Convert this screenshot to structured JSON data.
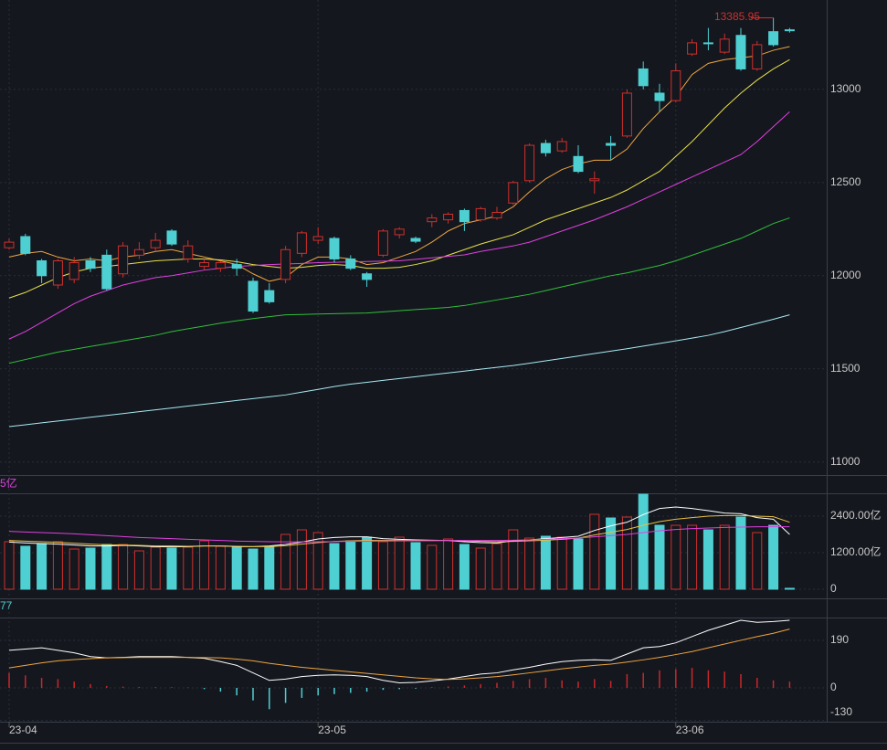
{
  "chart_data": [
    {
      "type": "candlestick",
      "categories": [
        "23-04",
        null,
        null,
        null,
        null,
        null,
        null,
        null,
        null,
        null,
        null,
        null,
        null,
        null,
        null,
        null,
        null,
        null,
        null,
        "23-05",
        null,
        null,
        null,
        null,
        null,
        null,
        null,
        null,
        null,
        null,
        null,
        null,
        null,
        null,
        null,
        null,
        null,
        null,
        null,
        null,
        null,
        "23-06",
        null,
        null,
        null,
        null,
        null,
        null,
        null
      ],
      "open": [
        12150,
        12210,
        12080,
        11950,
        11980,
        12080,
        12110,
        12010,
        12110,
        12150,
        12240,
        12090,
        12050,
        12040,
        12060,
        11970,
        11920,
        11980,
        12120,
        12190,
        12200,
        12090,
        12010,
        12110,
        12220,
        12200,
        12290,
        12300,
        12350,
        12300,
        12310,
        12390,
        12510,
        12710,
        12670,
        12640,
        12510,
        12710,
        12750,
        13110,
        12980,
        12940,
        13190,
        13250,
        13200,
        13290,
        13110,
        13310,
        13320
      ],
      "high": [
        12200,
        12225,
        12090,
        12090,
        12100,
        12100,
        12140,
        12180,
        12180,
        12230,
        12250,
        12190,
        12090,
        12080,
        12090,
        11990,
        11960,
        12160,
        12240,
        12260,
        12210,
        12110,
        12020,
        12250,
        12260,
        12210,
        12330,
        12340,
        12360,
        12370,
        12370,
        12510,
        12710,
        12730,
        12740,
        12700,
        12560,
        12750,
        13000,
        13150,
        13030,
        13140,
        13270,
        13330,
        13300,
        13330,
        13260,
        13385.95,
        13330
      ],
      "low": [
        12140,
        12110,
        11960,
        11930,
        11960,
        12020,
        11920,
        11990,
        12090,
        12130,
        12160,
        12070,
        12030,
        12020,
        12000,
        11800,
        11850,
        11960,
        12100,
        12170,
        12070,
        12030,
        11940,
        12100,
        12200,
        12175,
        12260,
        12280,
        12240,
        12290,
        12300,
        12380,
        12500,
        12640,
        12660,
        12550,
        12440,
        12620,
        12740,
        13000,
        12880,
        12930,
        13180,
        13210,
        13190,
        13100,
        13100,
        13230,
        13305
      ],
      "close": [
        12180,
        12120,
        12000,
        12080,
        12070,
        12040,
        11930,
        12160,
        12140,
        12190,
        12170,
        12160,
        12070,
        12070,
        12040,
        11810,
        11860,
        12140,
        12230,
        12210,
        12090,
        12040,
        11980,
        12240,
        12250,
        12185,
        12310,
        12330,
        12290,
        12360,
        12340,
        12500,
        12700,
        12660,
        12720,
        12560,
        12520,
        12700,
        12980,
        13020,
        12940,
        13100,
        13250,
        13245,
        13270,
        13110,
        13240,
        13240,
        13315
      ],
      "up_color": "#d0302c",
      "down_color": "#4ecfd2",
      "ylim": [
        10930,
        13480
      ],
      "yticks": [
        11000,
        11500,
        12000,
        12500,
        13000
      ],
      "lines": [
        {
          "color": "#f0a640",
          "values": [
            12100,
            12120,
            12130,
            12100,
            12080,
            12090,
            12080,
            12100,
            12110,
            12130,
            12140,
            12120,
            12100,
            12080,
            12060,
            12010,
            11970,
            11990,
            12060,
            12100,
            12100,
            12090,
            12060,
            12070,
            12100,
            12130,
            12180,
            12240,
            12280,
            12300,
            12320,
            12370,
            12450,
            12520,
            12570,
            12600,
            12620,
            12620,
            12680,
            12790,
            12880,
            12960,
            13080,
            13140,
            13160,
            13170,
            13180,
            13210,
            13230
          ]
        },
        {
          "color": "#e8e04a",
          "values": [
            11880,
            11910,
            11950,
            11990,
            12020,
            12040,
            12050,
            12060,
            12070,
            12080,
            12085,
            12090,
            12090,
            12085,
            12075,
            12060,
            12050,
            12040,
            12045,
            12055,
            12060,
            12055,
            12040,
            12040,
            12045,
            12060,
            12080,
            12110,
            12140,
            12170,
            12195,
            12220,
            12260,
            12300,
            12330,
            12360,
            12390,
            12420,
            12460,
            12510,
            12560,
            12640,
            12720,
            12810,
            12900,
            12980,
            13050,
            13110,
            13160
          ]
        },
        {
          "color": "#e040e0",
          "values": [
            11660,
            11700,
            11750,
            11800,
            11850,
            11890,
            11920,
            11950,
            11970,
            11990,
            12000,
            12015,
            12030,
            12040,
            12050,
            12055,
            12060,
            12063,
            12066,
            12070,
            12072,
            12074,
            12076,
            12078,
            12080,
            12088,
            12096,
            12104,
            12112,
            12130,
            12145,
            12160,
            12180,
            12210,
            12240,
            12270,
            12300,
            12335,
            12370,
            12410,
            12450,
            12490,
            12530,
            12570,
            12610,
            12650,
            12720,
            12800,
            12880
          ]
        },
        {
          "color": "#2fbf3a",
          "values": [
            11530,
            11550,
            11570,
            11590,
            11605,
            11620,
            11635,
            11650,
            11665,
            11680,
            11700,
            11715,
            11730,
            11745,
            11758,
            11770,
            11780,
            11790,
            11792,
            11794,
            11796,
            11798,
            11800,
            11806,
            11812,
            11818,
            11824,
            11830,
            11840,
            11855,
            11870,
            11885,
            11900,
            11920,
            11940,
            11960,
            11980,
            12000,
            12015,
            12035,
            12055,
            12080,
            12110,
            12140,
            12170,
            12200,
            12240,
            12280,
            12310
          ]
        },
        {
          "color": "#a8eaf2",
          "values": [
            11190,
            11200,
            11210,
            11220,
            11230,
            11240,
            11250,
            11260,
            11270,
            11280,
            11290,
            11300,
            11310,
            11320,
            11330,
            11340,
            11350,
            11360,
            11375,
            11390,
            11405,
            11418,
            11428,
            11438,
            11448,
            11458,
            11468,
            11478,
            11488,
            11498,
            11508,
            11518,
            11530,
            11543,
            11556,
            11569,
            11582,
            11595,
            11608,
            11622,
            11636,
            11650,
            11665,
            11680,
            11700,
            11722,
            11744,
            11766,
            11790
          ]
        }
      ]
    },
    {
      "type": "volume",
      "label": "5亿",
      "label_color": "#e040e0",
      "values": [
        1560,
        1410,
        1500,
        1560,
        1320,
        1350,
        1470,
        1470,
        1260,
        1380,
        1350,
        1380,
        1590,
        1410,
        1380,
        1320,
        1410,
        1800,
        1950,
        1860,
        1500,
        1590,
        1710,
        1560,
        1710,
        1530,
        1440,
        1650,
        1470,
        1350,
        1500,
        1950,
        1680,
        1740,
        1710,
        1650,
        2460,
        2340,
        2370,
        3120,
        2100,
        2100,
        2100,
        1950,
        2100,
        2370,
        1860,
        2100,
        30
      ],
      "ylim": [
        -300,
        3120
      ],
      "yticks": [
        {
          "value": 2400,
          "label": "2400.00亿"
        },
        {
          "value": 1200,
          "label": "1200.00亿"
        },
        0
      ],
      "lines": [
        {
          "color": "#ffffff",
          "values": [
            1550,
            1520,
            1500,
            1480,
            1450,
            1420,
            1420,
            1440,
            1420,
            1400,
            1390,
            1400,
            1420,
            1420,
            1400,
            1400,
            1420,
            1470,
            1550,
            1650,
            1700,
            1720,
            1720,
            1660,
            1640,
            1620,
            1610,
            1600,
            1560,
            1530,
            1520,
            1590,
            1620,
            1660,
            1700,
            1740,
            1930,
            2080,
            2200,
            2450,
            2650,
            2700,
            2650,
            2580,
            2500,
            2480,
            2350,
            2300,
            1800
          ]
        },
        {
          "color": "#e8c040",
          "values": [
            1600,
            1580,
            1560,
            1540,
            1510,
            1480,
            1460,
            1450,
            1440,
            1420,
            1420,
            1410,
            1420,
            1420,
            1410,
            1400,
            1400,
            1430,
            1480,
            1530,
            1570,
            1590,
            1600,
            1600,
            1600,
            1600,
            1600,
            1600,
            1590,
            1570,
            1560,
            1570,
            1590,
            1610,
            1640,
            1680,
            1780,
            1870,
            1960,
            2100,
            2220,
            2300,
            2350,
            2400,
            2420,
            2420,
            2400,
            2380,
            2200
          ]
        },
        {
          "color": "#e040e0",
          "values": [
            1900,
            1880,
            1860,
            1840,
            1820,
            1790,
            1760,
            1730,
            1700,
            1680,
            1660,
            1640,
            1620,
            1600,
            1580,
            1570,
            1560,
            1555,
            1555,
            1560,
            1565,
            1570,
            1575,
            1580,
            1585,
            1590,
            1595,
            1600,
            1600,
            1600,
            1600,
            1610,
            1620,
            1640,
            1660,
            1680,
            1720,
            1760,
            1800,
            1860,
            1920,
            1960,
            1990,
            2010,
            2030,
            2040,
            2050,
            2050,
            2050
          ]
        }
      ]
    },
    {
      "type": "macd",
      "label": "77",
      "label_color": "#4ecfd2",
      "hist": [
        60,
        50,
        40,
        35,
        25,
        15,
        8,
        5,
        4,
        3,
        3,
        2,
        -5,
        -15,
        -30,
        -50,
        -85,
        -60,
        -40,
        -30,
        -25,
        -20,
        -15,
        -8,
        -5,
        -3,
        3,
        6,
        10,
        15,
        20,
        28,
        35,
        40,
        30,
        25,
        35,
        28,
        55,
        60,
        70,
        75,
        80,
        70,
        65,
        55,
        40,
        30,
        25
      ],
      "pos_color": "#c8282a",
      "neg_color": "#4ecfd2",
      "ylim": [
        -135,
        281
      ],
      "yticks": [
        190,
        0,
        -130
      ],
      "lines": [
        {
          "color": "#ffffff",
          "values": [
            150,
            155,
            160,
            150,
            140,
            125,
            120,
            122,
            125,
            125,
            125,
            122,
            118,
            105,
            90,
            60,
            30,
            35,
            45,
            50,
            52,
            50,
            45,
            30,
            20,
            22,
            28,
            35,
            45,
            55,
            60,
            72,
            82,
            95,
            105,
            110,
            112,
            110,
            135,
            160,
            165,
            180,
            205,
            230,
            250,
            270,
            262,
            265,
            270
          ]
        },
        {
          "color": "#f0a640",
          "values": [
            80,
            90,
            100,
            108,
            113,
            117,
            120,
            121,
            122,
            122,
            122,
            122,
            121,
            120,
            115,
            108,
            98,
            90,
            82,
            76,
            70,
            64,
            58,
            52,
            46,
            40,
            36,
            34,
            36,
            40,
            45,
            52,
            60,
            68,
            76,
            83,
            90,
            95,
            103,
            112,
            122,
            133,
            145,
            160,
            175,
            190,
            205,
            218,
            235
          ]
        }
      ]
    }
  ]
}
